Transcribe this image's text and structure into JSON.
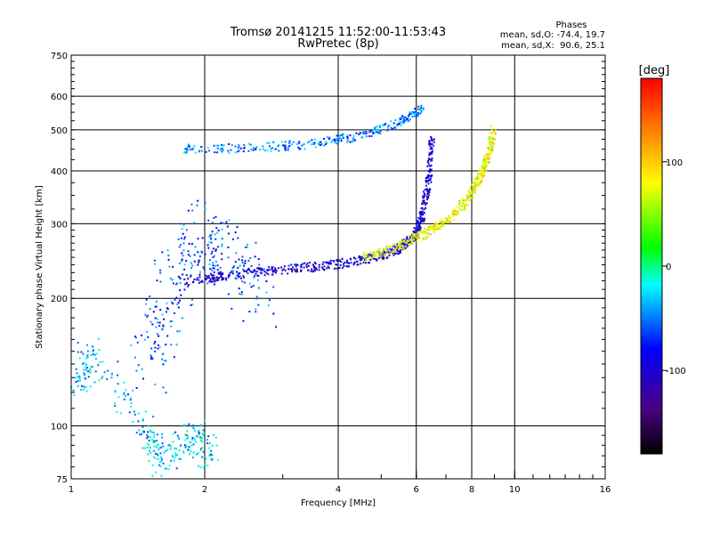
{
  "chart_data": {
    "type": "scatter",
    "title": "Tromsø 20141215 11:52:00-11:53:43",
    "subtitle": "RwPretec (8p)",
    "xlabel": "Frequency [MHz]",
    "ylabel": "Stationary phase Virtual Height [km]",
    "x_scale": "log",
    "y_scale": "log",
    "xlim": [
      1,
      16
    ],
    "ylim": [
      75,
      750
    ],
    "x_ticks": [
      1,
      2,
      4,
      6,
      8,
      10,
      16
    ],
    "x_tick_labels": [
      "1",
      "2",
      "4",
      "6",
      "8",
      "10",
      "16"
    ],
    "y_ticks": [
      75,
      100,
      200,
      300,
      400,
      500,
      600,
      750
    ],
    "y_tick_labels": [
      "75",
      "100",
      "200",
      "300",
      "400",
      "500",
      "600",
      "750"
    ],
    "grid": true,
    "stats": {
      "heading": "Phases",
      "line_o": "mean, sd,O: -74.4, 19.7",
      "line_x": "mean, sd,X:  90.6, 25.1"
    },
    "colorbar": {
      "unit": "[deg]",
      "range": [
        -180,
        180
      ],
      "ticks": [
        100,
        0,
        -100
      ],
      "tick_labels": [
        "100",
        "0",
        "-100"
      ]
    },
    "series": [
      {
        "id": "F2-O",
        "x": [
          1.8,
          2.2,
          2.8,
          3.5,
          4.2,
          5.0,
          5.6,
          6.0,
          6.2,
          6.4,
          6.5
        ],
        "y": [
          220,
          226,
          232,
          237,
          243,
          252,
          265,
          285,
          315,
          380,
          480
        ],
        "phase": -100
      },
      {
        "id": "F2-X",
        "x": [
          4.5,
          5.5,
          6.3,
          7.0,
          7.8,
          8.3,
          8.7,
          9.0
        ],
        "y": [
          250,
          265,
          285,
          305,
          340,
          380,
          430,
          500
        ],
        "phase": 80
      },
      {
        "id": "F2-second-hop",
        "x": [
          1.8,
          2.5,
          3.5,
          4.5,
          5.5,
          6.2
        ],
        "y": [
          450,
          452,
          462,
          485,
          520,
          560
        ],
        "phase": -50
      },
      {
        "id": "spread-F-cloud",
        "x": [
          1.45,
          1.6,
          1.75,
          2.0,
          2.3,
          2.7
        ],
        "y": [
          130,
          180,
          240,
          290,
          250,
          200
        ],
        "phase": -60
      },
      {
        "id": "E-region",
        "x": [
          1.02,
          1.1,
          1.5,
          1.6,
          1.9,
          2.05
        ],
        "y": [
          120,
          150,
          95,
          83,
          95,
          85
        ],
        "phase": -30
      }
    ]
  }
}
